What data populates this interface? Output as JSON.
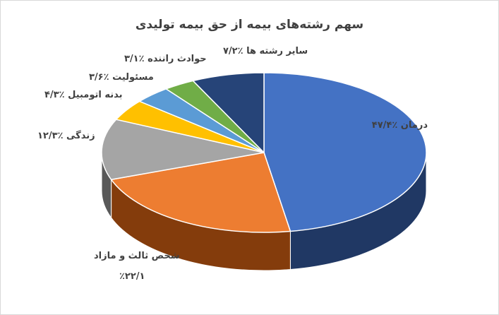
{
  "chart_data": {
    "type": "pie",
    "title": "سهم رشته‌های بیمه از حق بیمه تولیدی",
    "slices": [
      {
        "name": "درمان",
        "value": 47.4,
        "label": "درمان ٪۴۷/۴",
        "color": "#4472C4",
        "side": "#203864"
      },
      {
        "name": "شخص ثالث و مازاد",
        "value": 22.1,
        "label": "شخص ثالث و مازاد",
        "label2": "٪۲۲/۱",
        "color": "#ED7D31",
        "side": "#843C0C"
      },
      {
        "name": "زندگی",
        "value": 12.3,
        "label": "زندگی ٪۱۲/۳",
        "color": "#A5A5A5",
        "side": "#595959"
      },
      {
        "name": "بدنه اتومبیل",
        "value": 4.3,
        "label": "بدنه اتومبیل ٪۴/۳",
        "color": "#FFC000",
        "side": "#7F6000"
      },
      {
        "name": "مسئولیت",
        "value": 3.6,
        "label": "مسئولیت ٪۳/۶",
        "color": "#5B9BD5",
        "side": "#1F4E79"
      },
      {
        "name": "حوادث راننده",
        "value": 3.1,
        "label": "حوادث راننده ٪۳/۱",
        "color": "#70AD47",
        "side": "#375623"
      },
      {
        "name": "سایر رشته ها",
        "value": 7.2,
        "label": "سایر رشته ها ٪۷/۲",
        "color": "#264478",
        "side": "#0F1E36"
      }
    ],
    "legend": "none"
  }
}
